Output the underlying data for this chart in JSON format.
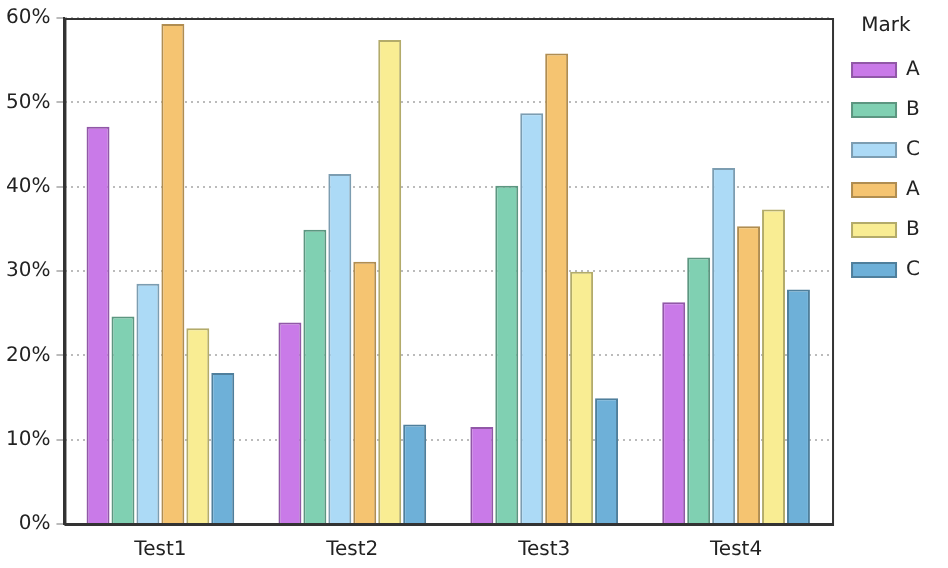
{
  "chart_data": {
    "type": "bar",
    "categories": [
      "Test1",
      "Test2",
      "Test3",
      "Test4"
    ],
    "series": [
      {
        "name": "A",
        "color": "#c97ae8",
        "values": [
          47.1,
          23.9,
          11.5,
          26.3
        ]
      },
      {
        "name": "B",
        "color": "#80d0b2",
        "values": [
          24.6,
          34.9,
          40.1,
          31.6
        ]
      },
      {
        "name": "C",
        "color": "#acdaf6",
        "values": [
          28.5,
          41.5,
          48.7,
          42.2
        ]
      },
      {
        "name": "A",
        "color": "#f5c471",
        "values": [
          59.3,
          31.1,
          55.8,
          35.3
        ]
      },
      {
        "name": "B",
        "color": "#f9ed93",
        "values": [
          23.2,
          57.4,
          29.9,
          37.3
        ]
      },
      {
        "name": "C",
        "color": "#6eb0d8",
        "values": [
          17.9,
          11.8,
          14.9,
          27.8
        ]
      }
    ],
    "ylim": [
      0,
      60
    ],
    "yticks": [
      {
        "value": 0,
        "label": "0%"
      },
      {
        "value": 10,
        "label": "10%"
      },
      {
        "value": 20,
        "label": "20%"
      },
      {
        "value": 30,
        "label": "30%"
      },
      {
        "value": 40,
        "label": "40%"
      },
      {
        "value": 50,
        "label": "50%"
      },
      {
        "value": 60,
        "label": "60%"
      }
    ],
    "grid": "y",
    "legend": "right",
    "legend_title": "Mark"
  }
}
